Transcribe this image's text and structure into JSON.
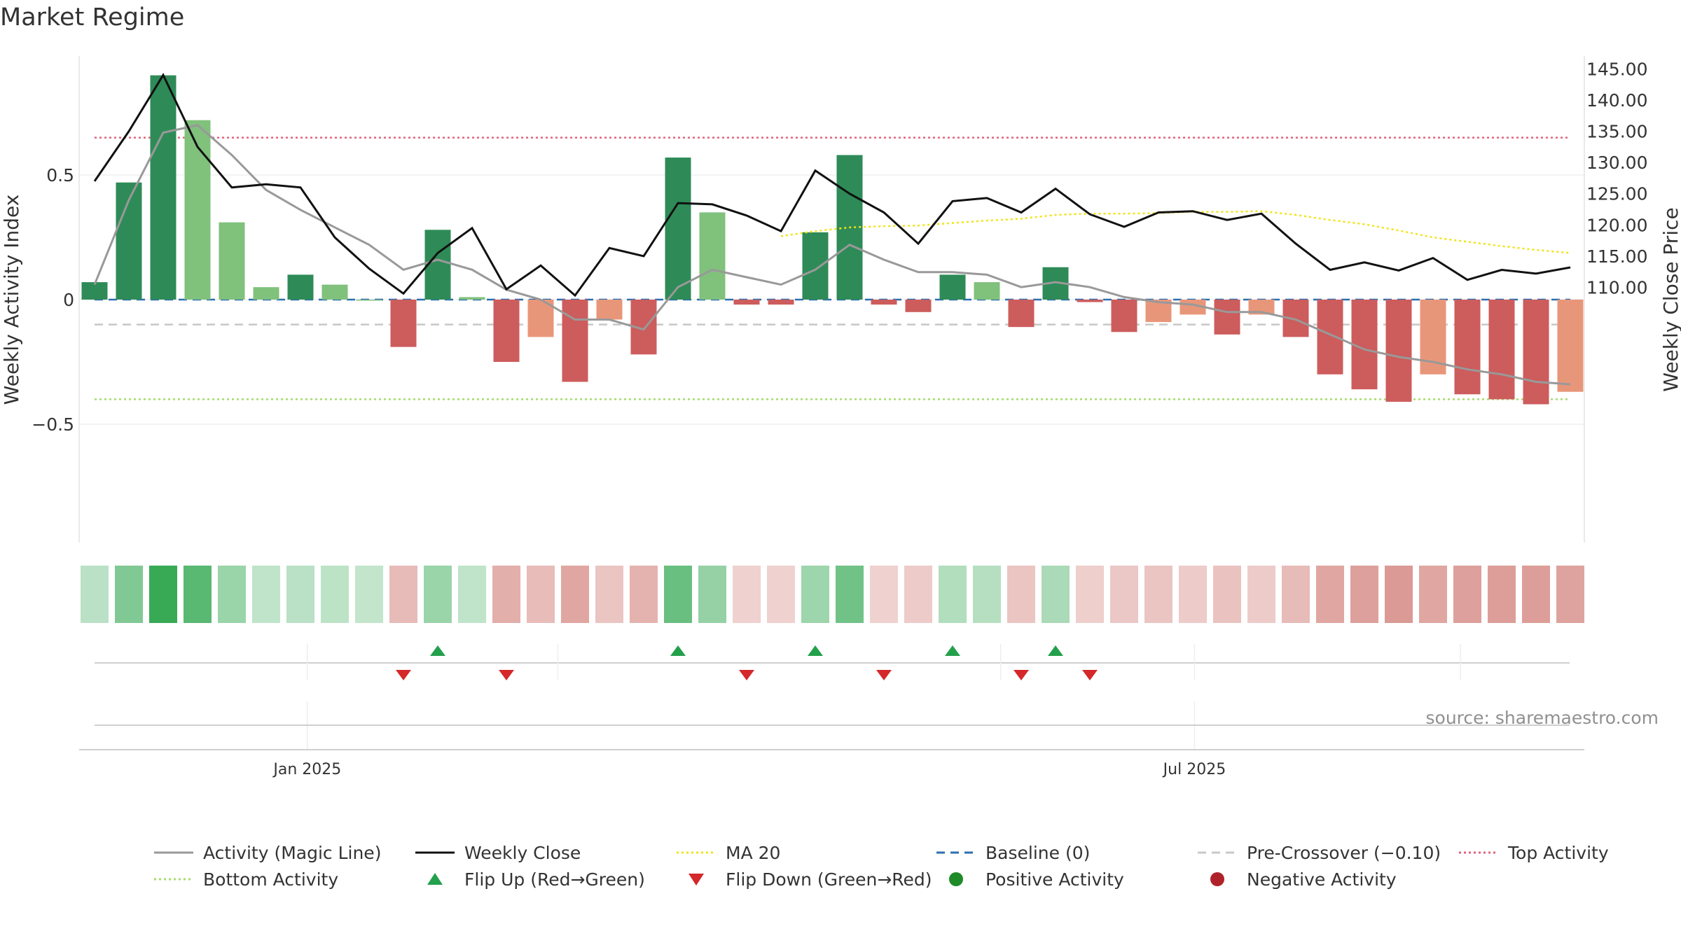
{
  "chart_data": {
    "type": "bar+line",
    "title": "Market Regime",
    "ylabel_left": "Weekly Activity Index",
    "ylabel_right": "Weekly Close Price",
    "yticks_left": [
      0.5,
      0,
      -0.5
    ],
    "ytick_labels_left": [
      "0.5",
      "0",
      "−0.5"
    ],
    "ylim_left": [
      -0.98,
      0.97
    ],
    "yticks_right": [
      145,
      140,
      135,
      130,
      125,
      120,
      115,
      110
    ],
    "ytick_labels_right": [
      "145.00",
      "140.00",
      "135.00",
      "130.00",
      "125.00",
      "120.00",
      "115.00",
      "110.00"
    ],
    "ylim_right": [
      106.8,
      148.4
    ],
    "x_labels": [
      {
        "label": "Jan 2025",
        "after_week": 6.2
      },
      {
        "label": "Jul 2025",
        "after_week": 32.05
      }
    ],
    "weeks": 44,
    "activity": [
      0.07,
      0.47,
      0.9,
      0.72,
      0.31,
      0.05,
      0.1,
      0.06,
      0.0,
      -0.19,
      0.28,
      0.01,
      -0.25,
      -0.15,
      -0.33,
      -0.08,
      -0.22,
      0.57,
      0.35,
      -0.02,
      -0.02,
      0.27,
      0.58,
      -0.02,
      -0.05,
      0.1,
      0.07,
      -0.11,
      0.13,
      -0.01,
      -0.13,
      -0.09,
      -0.06,
      -0.14,
      -0.06,
      -0.15,
      -0.3,
      -0.36,
      -0.41,
      -0.3,
      -0.38,
      -0.4,
      -0.42,
      -0.37
    ],
    "activity_strength": [
      "strong",
      "strong",
      "strong",
      "weak",
      "weak",
      "weak",
      "strong",
      "weak",
      "weak",
      "strong",
      "strong",
      "weak",
      "strong",
      "weak",
      "strong",
      "weak",
      "strong",
      "strong",
      "weak",
      "strong",
      "strong",
      "strong",
      "strong",
      "strong",
      "strong",
      "strong",
      "weak",
      "strong",
      "strong",
      "strong",
      "strong",
      "weak",
      "weak",
      "strong",
      "weak",
      "strong",
      "strong",
      "strong",
      "strong",
      "weak",
      "strong",
      "strong",
      "strong",
      "weak"
    ],
    "heat_levels": [
      0.15,
      0.5,
      0.95,
      0.75,
      0.35,
      0.12,
      0.15,
      0.13,
      0.1,
      0.28,
      0.35,
      0.12,
      0.38,
      0.27,
      0.45,
      0.2,
      0.35,
      0.65,
      0.38,
      0.1,
      0.1,
      0.33,
      0.6,
      0.1,
      0.15,
      0.2,
      0.18,
      0.2,
      0.25,
      0.12,
      0.18,
      0.2,
      0.15,
      0.22,
      0.15,
      0.28,
      0.45,
      0.5,
      0.55,
      0.45,
      0.5,
      0.52,
      0.52,
      0.48
    ],
    "magic_line": [
      0.06,
      0.4,
      0.67,
      0.7,
      0.58,
      0.44,
      0.36,
      0.29,
      0.22,
      0.12,
      0.16,
      0.12,
      0.04,
      0.0,
      -0.08,
      -0.08,
      -0.12,
      0.05,
      0.12,
      0.09,
      0.06,
      0.12,
      0.22,
      0.16,
      0.11,
      0.11,
      0.1,
      0.05,
      0.07,
      0.05,
      0.01,
      -0.01,
      -0.02,
      -0.05,
      -0.05,
      -0.08,
      -0.14,
      -0.2,
      -0.23,
      -0.25,
      -0.28,
      -0.3,
      -0.33,
      -0.34
    ],
    "weekly_close": [
      127.0,
      135.0,
      144.0,
      132.5,
      126.0,
      126.5,
      126.0,
      118.0,
      113.0,
      109.0,
      115.5,
      119.5,
      109.7,
      113.5,
      108.7,
      116.3,
      115.0,
      123.5,
      123.3,
      121.5,
      119.0,
      128.7,
      125.0,
      122.0,
      117.0,
      123.8,
      124.3,
      122.0,
      125.8,
      121.7,
      119.7,
      122.0,
      122.2,
      120.8,
      121.8,
      117.0,
      112.8,
      114.0,
      112.7,
      114.7,
      111.2,
      112.8,
      112.2,
      113.2
    ],
    "ma20": [
      null,
      null,
      null,
      null,
      null,
      null,
      null,
      null,
      null,
      null,
      null,
      null,
      null,
      null,
      null,
      null,
      null,
      null,
      null,
      null,
      118.2,
      119.0,
      119.6,
      119.8,
      119.9,
      120.3,
      120.7,
      121.0,
      121.6,
      121.8,
      121.8,
      121.9,
      122.1,
      122.1,
      122.2,
      121.6,
      120.8,
      120.1,
      119.1,
      118.0,
      117.3,
      116.6,
      116.0,
      115.5
    ],
    "baseline": 0,
    "pre_crossover": -0.1,
    "top_activity": 0.65,
    "bottom_activity": -0.4,
    "flip_up_weeks": [
      10,
      17,
      21,
      25,
      28
    ],
    "flip_down_weeks": [
      9,
      12,
      19,
      23,
      27,
      29
    ],
    "source": "source: sharemaestro.com",
    "legend": [
      {
        "label": "Activity (Magic Line)",
        "kind": "line",
        "color": "#999999",
        "dash": ""
      },
      {
        "label": "Weekly Close",
        "kind": "line",
        "color": "#111111",
        "dash": ""
      },
      {
        "label": "MA 20",
        "kind": "line",
        "color": "#f2e316",
        "dash": "3,4"
      },
      {
        "label": "Baseline (0)",
        "kind": "line",
        "color": "#2c6fb0",
        "dash": "12,8"
      },
      {
        "label": "Pre-Crossover (−0.10)",
        "kind": "line",
        "color": "#c8c8c8",
        "dash": "12,8"
      },
      {
        "label": "Top Activity",
        "kind": "line",
        "color": "#e0637a",
        "dash": "3,4"
      },
      {
        "label": "Bottom Activity",
        "kind": "line",
        "color": "#a5dc6e",
        "dash": "3,4"
      },
      {
        "label": "Flip Up (Red→Green)",
        "kind": "triangle-up",
        "color": "#23a04b",
        "dash": ""
      },
      {
        "label": "Flip Down (Green→Red)",
        "kind": "triangle-down",
        "color": "#d4282a",
        "dash": ""
      },
      {
        "label": "Positive Activity",
        "kind": "dot",
        "color": "#1f8a28",
        "dash": ""
      },
      {
        "label": "Negative Activity",
        "kind": "dot",
        "color": "#b0222a",
        "dash": ""
      }
    ],
    "colors": {
      "bar_pos_strong": "#2e8b57",
      "bar_pos_weak": "#80c17c",
      "bar_neg_strong": "#cd5c5c",
      "bar_neg_weak": "#e8967a",
      "heat_pos": "#34a853",
      "heat_neg": "#c9665f",
      "magic_line": "#999999",
      "close": "#111111"
    }
  }
}
